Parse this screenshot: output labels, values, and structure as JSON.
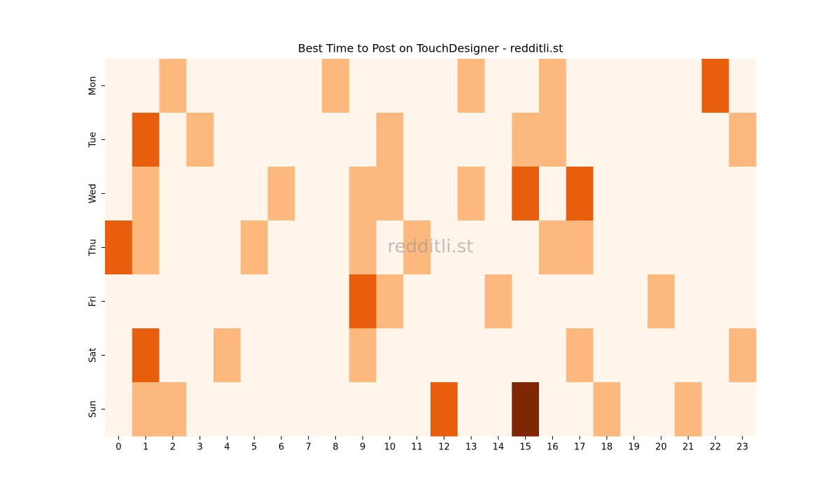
{
  "chart_data": {
    "type": "heatmap",
    "title": "Best Time to Post on TouchDesigner - redditli.st",
    "watermark": "redditli.st",
    "x_categories": [
      "0",
      "1",
      "2",
      "3",
      "4",
      "5",
      "6",
      "7",
      "8",
      "9",
      "10",
      "11",
      "12",
      "13",
      "14",
      "15",
      "16",
      "17",
      "18",
      "19",
      "20",
      "21",
      "22",
      "23"
    ],
    "y_categories": [
      "Mon",
      "Tue",
      "Wed",
      "Thu",
      "Fri",
      "Sat",
      "Sun"
    ],
    "values": [
      [
        0,
        0,
        1,
        0,
        0,
        0,
        0,
        0,
        1,
        0,
        0,
        0,
        0,
        1,
        0,
        0,
        1,
        0,
        0,
        0,
        0,
        0,
        2,
        0
      ],
      [
        0,
        2,
        0,
        1,
        0,
        0,
        0,
        0,
        0,
        0,
        1,
        0,
        0,
        0,
        0,
        1,
        1,
        0,
        0,
        0,
        0,
        0,
        0,
        1
      ],
      [
        0,
        1,
        0,
        0,
        0,
        0,
        1,
        0,
        0,
        1,
        1,
        0,
        0,
        1,
        0,
        2,
        0,
        2,
        0,
        0,
        0,
        0,
        0,
        0
      ],
      [
        2,
        1,
        0,
        0,
        0,
        1,
        0,
        0,
        0,
        1,
        0,
        1,
        0,
        0,
        0,
        0,
        1,
        1,
        0,
        0,
        0,
        0,
        0,
        0
      ],
      [
        0,
        0,
        0,
        0,
        0,
        0,
        0,
        0,
        0,
        2,
        1,
        0,
        0,
        0,
        1,
        0,
        0,
        0,
        0,
        0,
        1,
        0,
        0,
        0
      ],
      [
        0,
        2,
        0,
        0,
        1,
        0,
        0,
        0,
        0,
        1,
        0,
        0,
        0,
        0,
        0,
        0,
        0,
        1,
        0,
        0,
        0,
        0,
        0,
        1
      ],
      [
        0,
        1,
        1,
        0,
        0,
        0,
        0,
        0,
        0,
        0,
        0,
        0,
        2,
        0,
        0,
        3,
        0,
        0,
        1,
        0,
        0,
        1,
        0,
        0
      ]
    ],
    "colors": [
      "#fff5eb",
      "#fdb97d",
      "#e95e0d",
      "#7f2704"
    ]
  }
}
